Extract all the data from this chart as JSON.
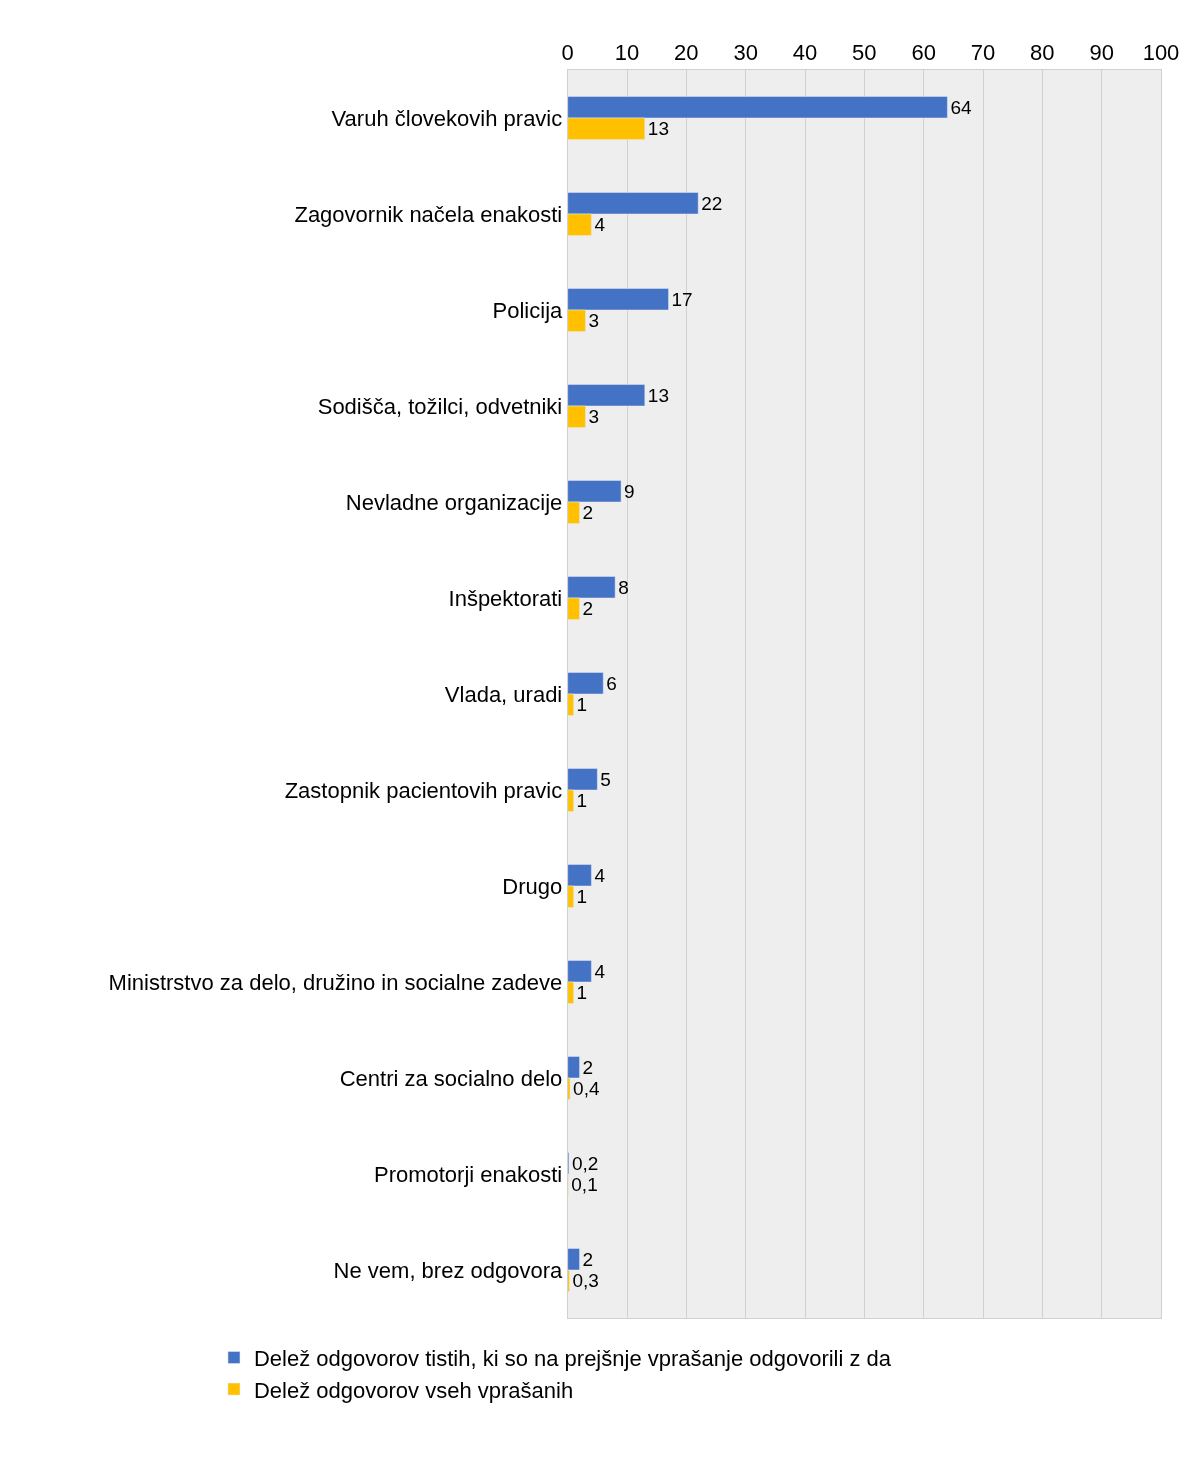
{
  "chart_data": {
    "type": "bar",
    "orientation": "horizontal",
    "categories": [
      "Varuh človekovih pravic",
      "Zagovornik načela enakosti",
      "Policija",
      "Sodišča, tožilci, odvetniki",
      "Nevladne organizacije",
      "Inšpektorati",
      "Vlada, uradi",
      "Zastopnik pacientovih pravic",
      "Drugo",
      "Ministrstvo za delo, družino in socialne zadeve",
      "Centri za socialno delo",
      "Promotorji enakosti",
      "Ne vem, brez odgovora"
    ],
    "series": [
      {
        "name": "Delež odgovorov tistih, ki so na prejšnje vprašanje odgovorili z da",
        "color": "#4472c4",
        "values": [
          64,
          22,
          17,
          13,
          9,
          8,
          6,
          5,
          4,
          4,
          2,
          0.2,
          2
        ],
        "value_labels": [
          "64",
          "22",
          "17",
          "13",
          "9",
          "8",
          "6",
          "5",
          "4",
          "4",
          "2",
          "0,2",
          "2"
        ]
      },
      {
        "name": "Delež odgovorov vseh vprašanih",
        "color": "#ffc000",
        "values": [
          13,
          4,
          3,
          3,
          2,
          2,
          1,
          1,
          1,
          1,
          0.4,
          0.1,
          0.3
        ],
        "value_labels": [
          "13",
          "4",
          "3",
          "3",
          "2",
          "2",
          "1",
          "1",
          "1",
          "1",
          "0,4",
          "0,1",
          "0,3"
        ]
      }
    ],
    "xlim": [
      0,
      100
    ],
    "xticks": [
      0,
      10,
      20,
      30,
      40,
      50,
      60,
      70,
      80,
      90,
      100
    ],
    "grid": "x",
    "legend": "bottom"
  }
}
